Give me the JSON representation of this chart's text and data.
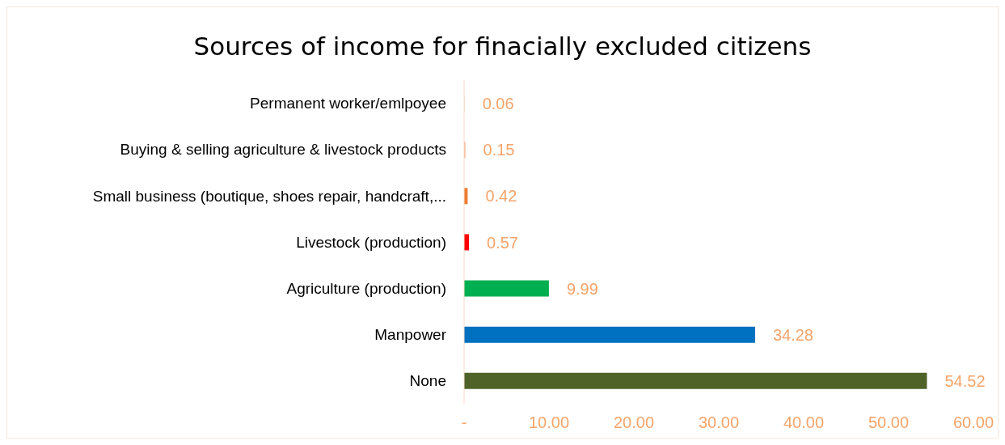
{
  "chart_data": {
    "type": "bar",
    "orientation": "horizontal",
    "title": "Sources of income for finacially excluded citizens",
    "categories": [
      "Permanent worker/emlpoyee",
      "Buying & selling agriculture & livestock products",
      "Small business (boutique, shoes repair, handcraft,...",
      "Livestock (production)",
      "Agriculture (production)",
      "Manpower",
      "None"
    ],
    "values": [
      0.06,
      0.15,
      0.42,
      0.57,
      9.99,
      34.28,
      54.52
    ],
    "colors": [
      "#f8cbad",
      "#f4b183",
      "#ed7d31",
      "#ff0000",
      "#00b050",
      "#0070c0",
      "#4f6228"
    ],
    "xlim": [
      0,
      60
    ],
    "xticks": [
      {
        "value": 0,
        "label": "-"
      },
      {
        "value": 10,
        "label": "10.00"
      },
      {
        "value": 20,
        "label": "20.00"
      },
      {
        "value": 30,
        "label": "30.00"
      },
      {
        "value": 40,
        "label": "40.00"
      },
      {
        "value": 50,
        "label": "50.00"
      },
      {
        "value": 60,
        "label": "60.00"
      }
    ],
    "data_labels": true,
    "grid": false,
    "legend": false
  }
}
